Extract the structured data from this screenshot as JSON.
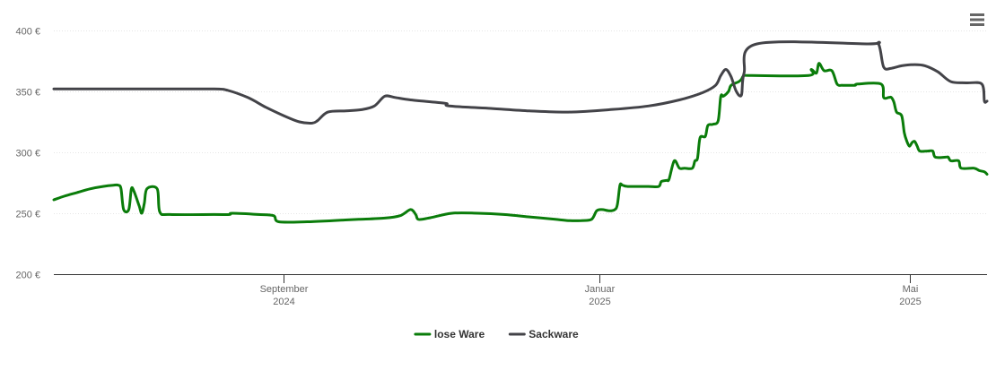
{
  "chart_data": {
    "type": "line",
    "title": "",
    "xlabel": "",
    "ylabel": "",
    "x_axis": {
      "type": "datetime",
      "range": [
        "2024-06-04",
        "2025-05-31"
      ],
      "ticks": [
        {
          "date": "2024-09-01",
          "line1": "September",
          "line2": "2024"
        },
        {
          "date": "2025-01-01",
          "line1": "Januar",
          "line2": "2025"
        },
        {
          "date": "2025-05-01",
          "line1": "Mai",
          "line2": "2025"
        }
      ]
    },
    "y_axis": {
      "range": [
        200,
        400
      ],
      "ticks": [
        {
          "value": 200,
          "label": "200 €"
        },
        {
          "value": 250,
          "label": "250 €"
        },
        {
          "value": 300,
          "label": "300 €"
        },
        {
          "value": 350,
          "label": "350 €"
        },
        {
          "value": 400,
          "label": "400 €"
        }
      ],
      "grid": true
    },
    "legend": {
      "position": "bottom-center"
    },
    "series": [
      {
        "name": "lose Ware",
        "color": "#0a7c0a",
        "points": [
          [
            "2024-06-04",
            261
          ],
          [
            "2024-06-08",
            264
          ],
          [
            "2024-06-13",
            267
          ],
          [
            "2024-06-18",
            270
          ],
          [
            "2024-06-23",
            272
          ],
          [
            "2024-06-27",
            273
          ],
          [
            "2024-06-29",
            273
          ],
          [
            "2024-06-30",
            270
          ],
          [
            "2024-07-01",
            253
          ],
          [
            "2024-07-03",
            253
          ],
          [
            "2024-07-04",
            270
          ],
          [
            "2024-07-05",
            268
          ],
          [
            "2024-07-07",
            256
          ],
          [
            "2024-07-08",
            250
          ],
          [
            "2024-07-09",
            258
          ],
          [
            "2024-07-10",
            270
          ],
          [
            "2024-07-14",
            270
          ],
          [
            "2024-07-15",
            251
          ],
          [
            "2024-07-19",
            249
          ],
          [
            "2024-08-05",
            249
          ],
          [
            "2024-08-11",
            249
          ],
          [
            "2024-08-12",
            250
          ],
          [
            "2024-08-22",
            249
          ],
          [
            "2024-08-28",
            248
          ],
          [
            "2024-08-30",
            243
          ],
          [
            "2024-09-10",
            243
          ],
          [
            "2024-09-20",
            244
          ],
          [
            "2024-09-30",
            245
          ],
          [
            "2024-10-10",
            246
          ],
          [
            "2024-10-16",
            248
          ],
          [
            "2024-10-20",
            253
          ],
          [
            "2024-10-22",
            249
          ],
          [
            "2024-10-23",
            245
          ],
          [
            "2024-10-27",
            246
          ],
          [
            "2024-11-05",
            250
          ],
          [
            "2024-11-15",
            250
          ],
          [
            "2024-11-25",
            249
          ],
          [
            "2024-12-05",
            247
          ],
          [
            "2024-12-15",
            245
          ],
          [
            "2024-12-20",
            244
          ],
          [
            "2024-12-25",
            244
          ],
          [
            "2024-12-29",
            245
          ],
          [
            "2024-12-31",
            252
          ],
          [
            "2025-01-02",
            253
          ],
          [
            "2025-01-05",
            252
          ],
          [
            "2025-01-07",
            253
          ],
          [
            "2025-01-08",
            257
          ],
          [
            "2025-01-09",
            273
          ],
          [
            "2025-01-10",
            273
          ],
          [
            "2025-01-12",
            272
          ],
          [
            "2025-01-20",
            272
          ],
          [
            "2025-01-24",
            272
          ],
          [
            "2025-01-25",
            276
          ],
          [
            "2025-01-27",
            277
          ],
          [
            "2025-01-28",
            278
          ],
          [
            "2025-01-30",
            293
          ],
          [
            "2025-02-01",
            287
          ],
          [
            "2025-02-03",
            287
          ],
          [
            "2025-02-06",
            287
          ],
          [
            "2025-02-07",
            293
          ],
          [
            "2025-02-08",
            295
          ],
          [
            "2025-02-09",
            312
          ],
          [
            "2025-02-11",
            313
          ],
          [
            "2025-02-12",
            322
          ],
          [
            "2025-02-14",
            323
          ],
          [
            "2025-02-16",
            326
          ],
          [
            "2025-02-17",
            346
          ],
          [
            "2025-02-18",
            346
          ],
          [
            "2025-02-20",
            350
          ],
          [
            "2025-02-21",
            355
          ],
          [
            "2025-02-24",
            358
          ],
          [
            "2025-02-25",
            360
          ],
          [
            "2025-02-26",
            363
          ],
          [
            "2025-03-01",
            363
          ],
          [
            "2025-03-23",
            363
          ],
          [
            "2025-03-24",
            368
          ],
          [
            "2025-03-26",
            365
          ],
          [
            "2025-03-27",
            373
          ],
          [
            "2025-03-29",
            367
          ],
          [
            "2025-04-01",
            367
          ],
          [
            "2025-04-03",
            356
          ],
          [
            "2025-04-05",
            355
          ],
          [
            "2025-04-08",
            355
          ],
          [
            "2025-04-10",
            355
          ],
          [
            "2025-04-11",
            356
          ],
          [
            "2025-04-20",
            356
          ],
          [
            "2025-04-21",
            345
          ],
          [
            "2025-04-23",
            345
          ],
          [
            "2025-04-24",
            345
          ],
          [
            "2025-04-25",
            341
          ],
          [
            "2025-04-26",
            333
          ],
          [
            "2025-04-28",
            330
          ],
          [
            "2025-04-29",
            316
          ],
          [
            "2025-04-30",
            309
          ],
          [
            "2025-05-01",
            305
          ],
          [
            "2025-05-02",
            308
          ],
          [
            "2025-05-03",
            309
          ],
          [
            "2025-05-04",
            305
          ],
          [
            "2025-05-05",
            301
          ],
          [
            "2025-05-08",
            301
          ],
          [
            "2025-05-10",
            301
          ],
          [
            "2025-05-11",
            296
          ],
          [
            "2025-05-15",
            296
          ],
          [
            "2025-05-16",
            296
          ],
          [
            "2025-05-17",
            293
          ],
          [
            "2025-05-20",
            293
          ],
          [
            "2025-05-21",
            287
          ],
          [
            "2025-05-26",
            287
          ],
          [
            "2025-05-28",
            285
          ],
          [
            "2025-05-30",
            284
          ],
          [
            "2025-05-31",
            282
          ]
        ]
      },
      {
        "name": "Sackware",
        "color": "#434348",
        "points": [
          [
            "2024-06-04",
            352
          ],
          [
            "2024-07-15",
            352
          ],
          [
            "2024-08-05",
            352
          ],
          [
            "2024-08-10",
            351
          ],
          [
            "2024-08-18",
            345
          ],
          [
            "2024-08-25",
            337
          ],
          [
            "2024-09-01",
            330
          ],
          [
            "2024-09-07",
            325
          ],
          [
            "2024-09-12",
            324
          ],
          [
            "2024-09-14",
            326
          ],
          [
            "2024-09-18",
            333
          ],
          [
            "2024-09-25",
            334
          ],
          [
            "2024-10-01",
            335
          ],
          [
            "2024-10-06",
            338
          ],
          [
            "2024-10-10",
            346
          ],
          [
            "2024-10-14",
            345
          ],
          [
            "2024-10-20",
            343
          ],
          [
            "2024-10-30",
            341
          ],
          [
            "2024-11-03",
            340
          ],
          [
            "2024-11-04",
            338
          ],
          [
            "2024-11-20",
            336
          ],
          [
            "2024-12-05",
            334
          ],
          [
            "2024-12-20",
            333
          ],
          [
            "2025-01-05",
            335
          ],
          [
            "2025-01-20",
            338
          ],
          [
            "2025-02-01",
            343
          ],
          [
            "2025-02-10",
            349
          ],
          [
            "2025-02-15",
            355
          ],
          [
            "2025-02-17",
            363
          ],
          [
            "2025-02-19",
            368
          ],
          [
            "2025-02-21",
            362
          ],
          [
            "2025-02-23",
            350
          ],
          [
            "2025-02-25",
            347
          ],
          [
            "2025-02-26",
            365
          ],
          [
            "2025-03-03",
            389
          ],
          [
            "2025-04-15",
            389
          ],
          [
            "2025-04-19",
            389
          ],
          [
            "2025-04-21",
            370
          ],
          [
            "2025-04-24",
            369
          ],
          [
            "2025-04-28",
            371
          ],
          [
            "2025-05-03",
            372
          ],
          [
            "2025-05-07",
            371
          ],
          [
            "2025-05-12",
            366
          ],
          [
            "2025-05-17",
            358
          ],
          [
            "2025-05-23",
            357
          ],
          [
            "2025-05-29",
            356
          ],
          [
            "2025-05-30",
            342
          ],
          [
            "2025-05-31",
            342
          ]
        ]
      }
    ]
  },
  "toolbar": {
    "menu_icon": "hamburger-menu-icon"
  },
  "colors": {
    "axis_line": "#333333",
    "grid_line": "#e6e6e6",
    "tick_text": "#666666",
    "legend_text": "#333333"
  }
}
